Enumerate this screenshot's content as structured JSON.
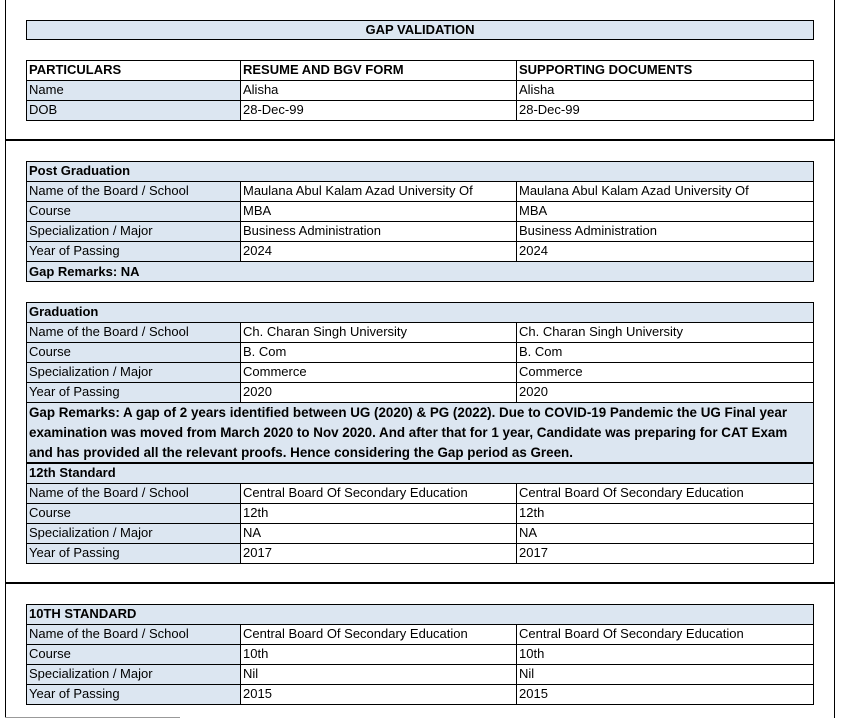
{
  "header": {
    "title": "GAP VALIDATION"
  },
  "particulars": {
    "columns": [
      "PARTICULARS",
      "RESUME AND BGV FORM",
      "SUPPORTING DOCUMENTS"
    ],
    "rows": [
      [
        "Name",
        "Alisha",
        "Alisha"
      ],
      [
        "DOB",
        "28-Dec-99",
        "28-Dec-99"
      ]
    ]
  },
  "sections": [
    {
      "title": "Post Graduation",
      "rows": [
        [
          "Name of the Board / School",
          "Maulana Abul Kalam Azad University Of",
          "Maulana Abul Kalam Azad University Of"
        ],
        [
          "Course",
          "MBA",
          "MBA"
        ],
        [
          "Specialization / Major",
          "Business Administration",
          "Business Administration"
        ],
        [
          "Year of Passing",
          "2024",
          "2024"
        ]
      ],
      "remarks": "Gap Remarks: NA"
    },
    {
      "title": "Graduation",
      "rows": [
        [
          "Name of the Board / School",
          "Ch. Charan Singh University",
          "Ch. Charan Singh University"
        ],
        [
          "Course",
          "B. Com",
          "B. Com"
        ],
        [
          "Specialization / Major",
          "Commerce",
          "Commerce"
        ],
        [
          "Year of Passing",
          "2020",
          "2020"
        ]
      ],
      "remarks": "Gap Remarks: A gap of 2 years identified between UG (2020) & PG (2022). Due to COVID-19 Pandemic the UG Final year examination was moved from March 2020 to Nov 2020. And after that for 1 year, Candidate was preparing for CAT Exam and has provided all the relevant proofs. Hence considering the Gap period as Green."
    },
    {
      "title": "12th Standard",
      "rows": [
        [
          "Name of the Board / School",
          "Central Board Of Secondary Education",
          "Central Board Of Secondary Education"
        ],
        [
          "Course",
          "12th",
          "12th"
        ],
        [
          "Specialization / Major",
          "NA",
          "NA"
        ],
        [
          "Year of Passing",
          "2017",
          "2017"
        ]
      ]
    },
    {
      "title": "10TH STANDARD",
      "rows": [
        [
          "Name of the Board / School",
          "Central Board Of Secondary Education",
          "Central Board Of Secondary Education"
        ],
        [
          "Course",
          "10th",
          "10th"
        ],
        [
          "Specialization / Major",
          "Nil",
          "Nil"
        ],
        [
          "Year of Passing",
          "2015",
          "2015"
        ]
      ]
    }
  ]
}
